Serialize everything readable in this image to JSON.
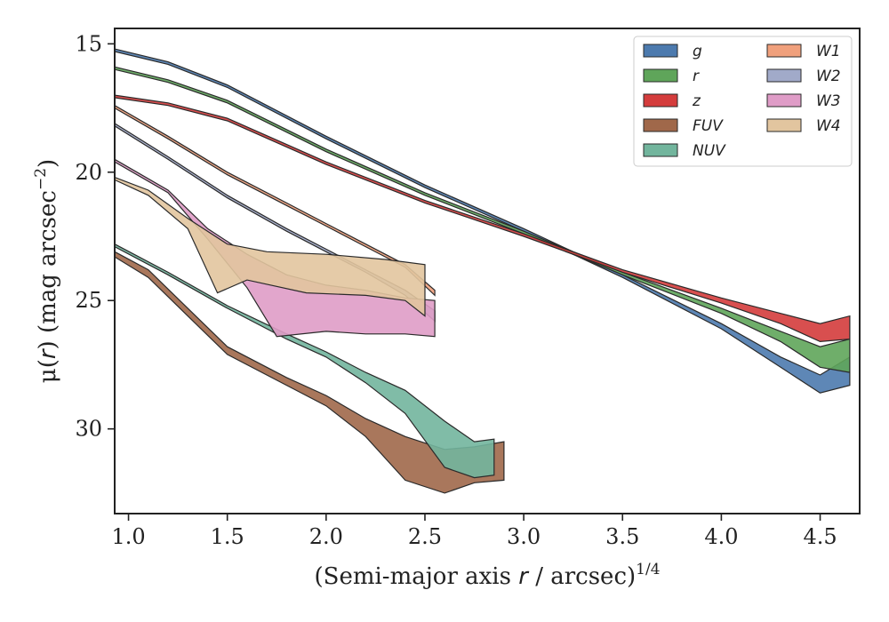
{
  "chart_data": {
    "type": "area",
    "title": "",
    "xlabel": {
      "main": "(Semi-major axis ",
      "var": "r",
      "unit": " / arcsec)",
      "sup": "1/4"
    },
    "ylabel": {
      "mu": "μ(",
      "var": "r",
      "close": ") (mag arcsec",
      "sup": "−2",
      "end": ")"
    },
    "xlim": [
      0.93,
      4.7
    ],
    "ylim": [
      33.3,
      14.4
    ],
    "y_inverted": true,
    "xticks": [
      1.0,
      1.5,
      2.0,
      2.5,
      3.0,
      3.5,
      4.0,
      4.5
    ],
    "xtick_labels": [
      "1.0",
      "1.5",
      "2.0",
      "2.5",
      "3.0",
      "3.5",
      "4.0",
      "4.5"
    ],
    "yticks": [
      15,
      20,
      25,
      30
    ],
    "ytick_labels": [
      "15",
      "20",
      "25",
      "30"
    ],
    "grid": false,
    "legend_placement": "top-right",
    "legend_columns": 2,
    "series": [
      {
        "name": "g",
        "color": "#4c7aae",
        "upper": [
          [
            0.93,
            15.2
          ],
          [
            1.2,
            15.7
          ],
          [
            1.5,
            16.6
          ],
          [
            2.0,
            18.6
          ],
          [
            2.5,
            20.5
          ],
          [
            3.0,
            22.2
          ],
          [
            3.5,
            24.0
          ],
          [
            4.0,
            25.9
          ],
          [
            4.3,
            27.2
          ],
          [
            4.5,
            27.9
          ],
          [
            4.65,
            27.2
          ]
        ],
        "lower": [
          [
            0.93,
            15.3
          ],
          [
            1.2,
            15.8
          ],
          [
            1.5,
            16.7
          ],
          [
            2.0,
            18.7
          ],
          [
            2.5,
            20.6
          ],
          [
            3.0,
            22.3
          ],
          [
            3.5,
            24.1
          ],
          [
            4.0,
            26.1
          ],
          [
            4.3,
            27.6
          ],
          [
            4.5,
            28.6
          ],
          [
            4.65,
            28.3
          ]
        ]
      },
      {
        "name": "r",
        "color": "#5fa55a",
        "upper": [
          [
            0.93,
            15.9
          ],
          [
            1.2,
            16.4
          ],
          [
            1.5,
            17.2
          ],
          [
            2.0,
            19.1
          ],
          [
            2.5,
            20.8
          ],
          [
            3.0,
            22.3
          ],
          [
            3.5,
            23.9
          ],
          [
            4.0,
            25.3
          ],
          [
            4.3,
            26.2
          ],
          [
            4.5,
            26.8
          ],
          [
            4.65,
            26.5
          ]
        ],
        "lower": [
          [
            0.93,
            16.0
          ],
          [
            1.2,
            16.5
          ],
          [
            1.5,
            17.3
          ],
          [
            2.0,
            19.2
          ],
          [
            2.5,
            20.9
          ],
          [
            3.0,
            22.4
          ],
          [
            3.5,
            24.0
          ],
          [
            4.0,
            25.5
          ],
          [
            4.3,
            26.6
          ],
          [
            4.5,
            27.6
          ],
          [
            4.65,
            27.8
          ]
        ]
      },
      {
        "name": "z",
        "color": "#d43c3c",
        "upper": [
          [
            0.93,
            17.0
          ],
          [
            1.2,
            17.3
          ],
          [
            1.5,
            17.9
          ],
          [
            2.0,
            19.6
          ],
          [
            2.5,
            21.1
          ],
          [
            3.0,
            22.4
          ],
          [
            3.5,
            23.8
          ],
          [
            4.0,
            24.9
          ],
          [
            4.3,
            25.5
          ],
          [
            4.5,
            25.9
          ],
          [
            4.65,
            25.6
          ]
        ],
        "lower": [
          [
            0.93,
            17.1
          ],
          [
            1.2,
            17.4
          ],
          [
            1.5,
            18.0
          ],
          [
            2.0,
            19.7
          ],
          [
            2.5,
            21.2
          ],
          [
            3.0,
            22.5
          ],
          [
            3.5,
            23.9
          ],
          [
            4.0,
            25.1
          ],
          [
            4.3,
            25.9
          ],
          [
            4.5,
            26.6
          ],
          [
            4.65,
            26.5
          ]
        ]
      },
      {
        "name": "FUV",
        "color": "#a0684a",
        "upper": [
          [
            0.93,
            23.1
          ],
          [
            1.1,
            23.8
          ],
          [
            1.3,
            25.3
          ],
          [
            1.5,
            26.8
          ],
          [
            1.8,
            28.0
          ],
          [
            2.0,
            28.7
          ],
          [
            2.2,
            29.6
          ],
          [
            2.4,
            30.3
          ],
          [
            2.6,
            30.8
          ],
          [
            2.75,
            30.7
          ],
          [
            2.9,
            30.5
          ]
        ],
        "lower": [
          [
            0.93,
            23.3
          ],
          [
            1.1,
            24.1
          ],
          [
            1.3,
            25.6
          ],
          [
            1.5,
            27.1
          ],
          [
            1.8,
            28.3
          ],
          [
            2.0,
            29.1
          ],
          [
            2.2,
            30.3
          ],
          [
            2.4,
            32.0
          ],
          [
            2.6,
            32.5
          ],
          [
            2.75,
            32.1
          ],
          [
            2.9,
            32.0
          ]
        ]
      },
      {
        "name": "NUV",
        "color": "#72b59d",
        "upper": [
          [
            0.93,
            22.8
          ],
          [
            1.2,
            23.9
          ],
          [
            1.5,
            25.2
          ],
          [
            1.8,
            26.3
          ],
          [
            2.0,
            27.0
          ],
          [
            2.2,
            27.8
          ],
          [
            2.4,
            28.5
          ],
          [
            2.6,
            29.7
          ],
          [
            2.75,
            30.5
          ],
          [
            2.85,
            30.4
          ]
        ],
        "lower": [
          [
            0.93,
            22.9
          ],
          [
            1.2,
            24.0
          ],
          [
            1.5,
            25.3
          ],
          [
            1.8,
            26.5
          ],
          [
            2.0,
            27.2
          ],
          [
            2.2,
            28.2
          ],
          [
            2.4,
            29.4
          ],
          [
            2.6,
            31.5
          ],
          [
            2.75,
            31.9
          ],
          [
            2.85,
            31.8
          ]
        ]
      },
      {
        "name": "W1",
        "color": "#f0a07c",
        "upper": [
          [
            0.93,
            17.4
          ],
          [
            1.2,
            18.6
          ],
          [
            1.5,
            20.0
          ],
          [
            1.8,
            21.2
          ],
          [
            2.0,
            22.0
          ],
          [
            2.2,
            22.8
          ],
          [
            2.4,
            23.6
          ],
          [
            2.55,
            24.6
          ]
        ],
        "lower": [
          [
            0.93,
            17.5
          ],
          [
            1.2,
            18.7
          ],
          [
            1.5,
            20.1
          ],
          [
            1.8,
            21.3
          ],
          [
            2.0,
            22.1
          ],
          [
            2.2,
            22.9
          ],
          [
            2.4,
            23.7
          ],
          [
            2.55,
            24.8
          ]
        ]
      },
      {
        "name": "W2",
        "color": "#a1aac9",
        "upper": [
          [
            0.93,
            18.1
          ],
          [
            1.2,
            19.4
          ],
          [
            1.5,
            20.9
          ],
          [
            1.8,
            22.2
          ],
          [
            2.0,
            23.0
          ],
          [
            2.2,
            23.8
          ],
          [
            2.4,
            24.6
          ],
          [
            2.55,
            25.4
          ]
        ],
        "lower": [
          [
            0.93,
            18.2
          ],
          [
            1.2,
            19.5
          ],
          [
            1.5,
            21.0
          ],
          [
            1.8,
            22.3
          ],
          [
            2.0,
            23.1
          ],
          [
            2.2,
            23.9
          ],
          [
            2.4,
            24.8
          ],
          [
            2.55,
            25.8
          ]
        ]
      },
      {
        "name": "W3",
        "color": "#df9cc7",
        "upper": [
          [
            0.93,
            19.5
          ],
          [
            1.2,
            20.7
          ],
          [
            1.4,
            22.2
          ],
          [
            1.6,
            23.2
          ],
          [
            1.8,
            24.0
          ],
          [
            2.0,
            24.4
          ],
          [
            2.2,
            24.6
          ],
          [
            2.4,
            24.9
          ],
          [
            2.55,
            25.0
          ]
        ],
        "lower": [
          [
            0.93,
            19.6
          ],
          [
            1.2,
            20.8
          ],
          [
            1.4,
            22.6
          ],
          [
            1.6,
            24.5
          ],
          [
            1.75,
            26.4
          ],
          [
            2.0,
            26.2
          ],
          [
            2.2,
            26.3
          ],
          [
            2.4,
            26.3
          ],
          [
            2.55,
            26.4
          ]
        ]
      },
      {
        "name": "W4",
        "color": "#e2c59f",
        "upper": [
          [
            0.93,
            20.2
          ],
          [
            1.1,
            20.7
          ],
          [
            1.3,
            21.8
          ],
          [
            1.5,
            22.8
          ],
          [
            1.7,
            23.1
          ],
          [
            2.0,
            23.2
          ],
          [
            2.3,
            23.4
          ],
          [
            2.5,
            23.6
          ]
        ],
        "lower": [
          [
            0.93,
            20.3
          ],
          [
            1.1,
            20.9
          ],
          [
            1.3,
            22.2
          ],
          [
            1.45,
            24.7
          ],
          [
            1.6,
            24.2
          ],
          [
            1.9,
            24.7
          ],
          [
            2.2,
            24.8
          ],
          [
            2.4,
            25.0
          ],
          [
            2.5,
            25.6
          ]
        ]
      }
    ]
  }
}
